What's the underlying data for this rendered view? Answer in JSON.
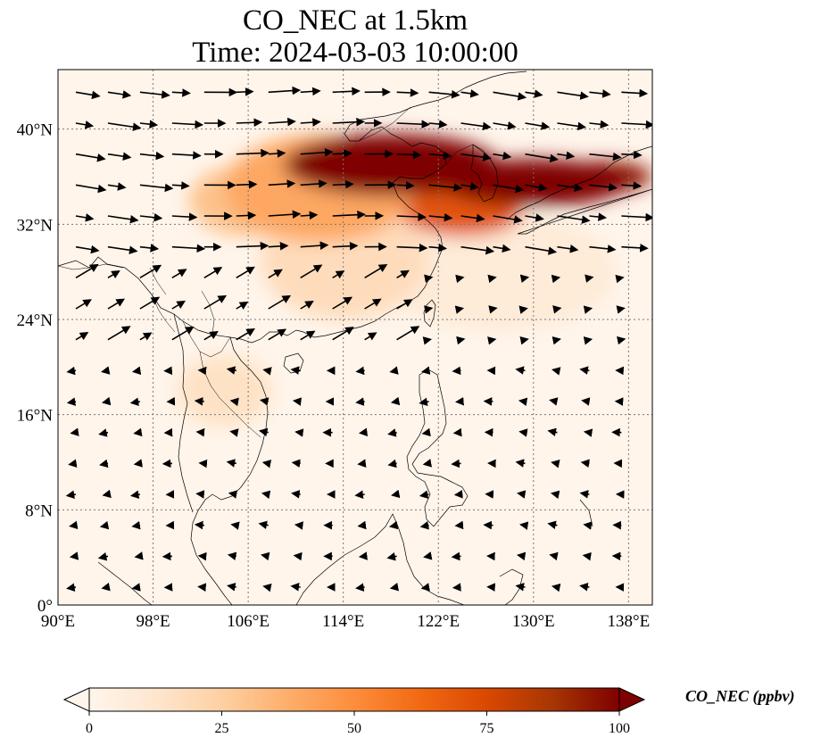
{
  "title": {
    "line1": "CO_NEC at 1.5km",
    "line2": "Time: 2024-03-03 10:00:00"
  },
  "map": {
    "type": "geographic-concentration-map-with-wind-vectors",
    "extent": {
      "lon_min": 90,
      "lon_max": 140,
      "lat_min": 0,
      "lat_max": 45
    },
    "gridlines": true,
    "x_ticks": [
      {
        "value": 90,
        "label": "90°E"
      },
      {
        "value": 98,
        "label": "98°E"
      },
      {
        "value": 106,
        "label": "106°E"
      },
      {
        "value": 114,
        "label": "114°E"
      },
      {
        "value": 122,
        "label": "122°E"
      },
      {
        "value": 130,
        "label": "130°E"
      },
      {
        "value": 138,
        "label": "138°E"
      }
    ],
    "y_ticks": [
      {
        "value": 0,
        "label": "0°"
      },
      {
        "value": 8,
        "label": "8°N"
      },
      {
        "value": 16,
        "label": "16°N"
      },
      {
        "value": 24,
        "label": "24°N"
      },
      {
        "value": 32,
        "label": "32°N"
      },
      {
        "value": 40,
        "label": "40°N"
      }
    ],
    "plumes": [
      {
        "lon": 118,
        "lat": 37,
        "rlon": 9,
        "rlat": 2.6,
        "value": 100
      },
      {
        "lon": 130,
        "lat": 35.5,
        "rlon": 8,
        "rlat": 2.0,
        "value": 100
      },
      {
        "lon": 136,
        "lat": 36,
        "rlon": 4,
        "rlat": 1.3,
        "value": 95
      },
      {
        "lon": 124,
        "lat": 33,
        "rlon": 5,
        "rlat": 2.0,
        "value": 70
      },
      {
        "lon": 112,
        "lat": 35,
        "rlon": 8,
        "rlat": 4.5,
        "value": 40
      },
      {
        "lon": 106,
        "lat": 34,
        "rlon": 5,
        "rlat": 3.0,
        "value": 30
      },
      {
        "lon": 114,
        "lat": 29,
        "rlon": 7,
        "rlat": 5.0,
        "value": 18
      },
      {
        "lon": 104,
        "lat": 18,
        "rlon": 4,
        "rlat": 3.0,
        "value": 15
      },
      {
        "lon": 127,
        "lat": 28,
        "rlon": 10,
        "rlat": 5.0,
        "value": 8
      }
    ]
  },
  "colorbar": {
    "label": "CO_NEC (ppbv)",
    "min": 0,
    "max": 100,
    "ticks": [
      "0",
      "25",
      "50",
      "75",
      "100"
    ],
    "colors": [
      "#fff5eb",
      "#fee6ce",
      "#fdd0a2",
      "#fdae6b",
      "#fd8d3c",
      "#f16913",
      "#d94801",
      "#a63603",
      "#7f0000"
    ],
    "extend": "both"
  }
}
